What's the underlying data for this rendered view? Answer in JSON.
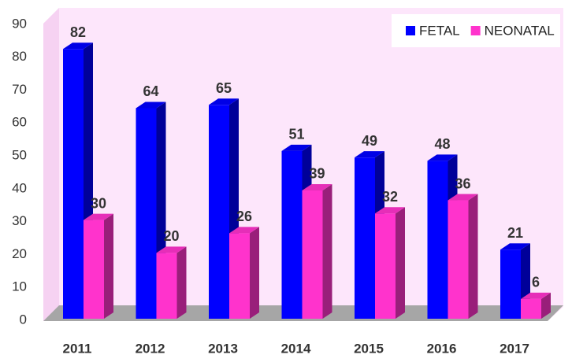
{
  "chart_data": {
    "type": "bar3d",
    "categories": [
      "2011",
      "2012",
      "2013",
      "2014",
      "2015",
      "2016",
      "2017"
    ],
    "series": [
      {
        "name": "FETAL",
        "color": "#0000ff",
        "values": [
          82,
          64,
          65,
          51,
          49,
          48,
          21
        ]
      },
      {
        "name": "NEONATAL",
        "color": "#ff33cc",
        "values": [
          30,
          20,
          26,
          39,
          32,
          36,
          6
        ]
      }
    ],
    "ylim": [
      0,
      90
    ],
    "yticks": [
      0,
      10,
      20,
      30,
      40,
      50,
      60,
      70,
      80,
      90
    ],
    "grid": false,
    "legend": "upper right"
  }
}
